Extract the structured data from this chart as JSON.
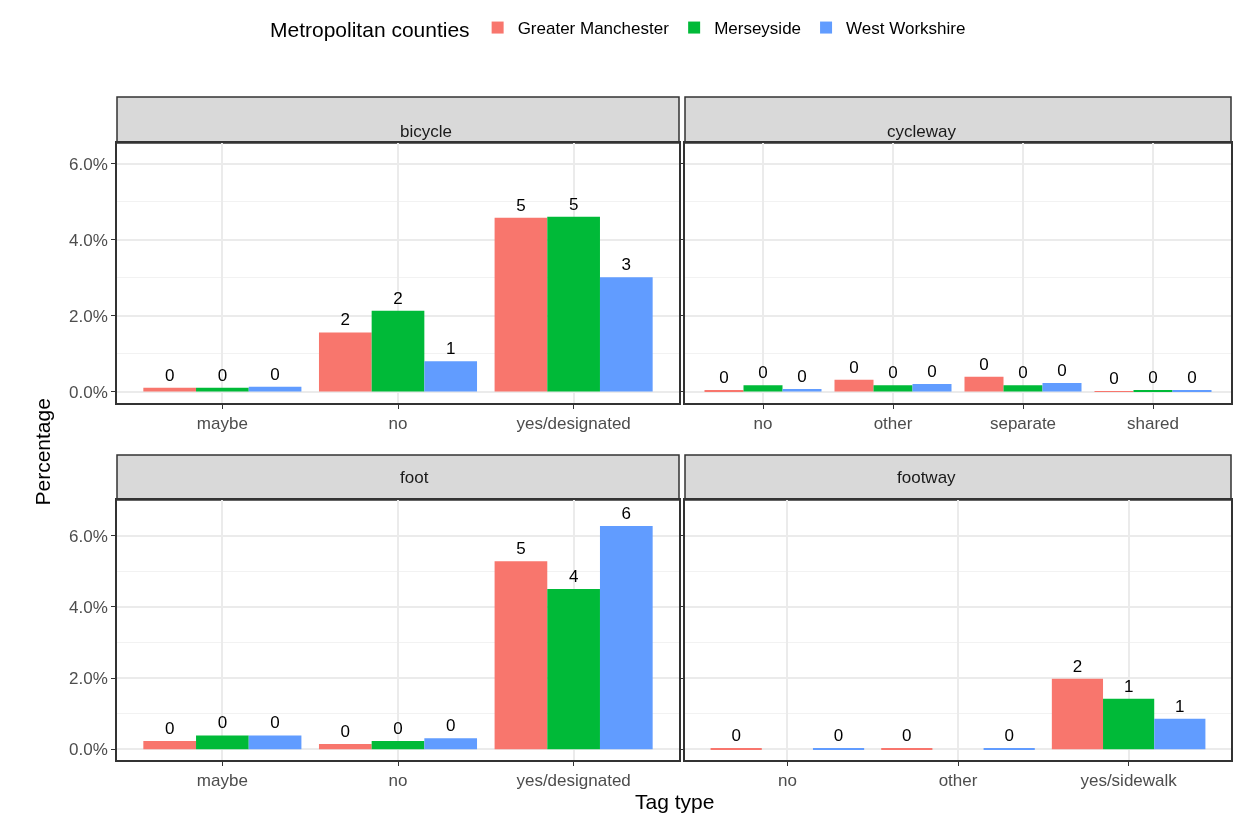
{
  "chart_data": [
    {
      "type": "bar",
      "title": "bicycle",
      "legend_title": "Metropolitan counties",
      "legend": "top",
      "ylabel": "Percentage",
      "grid": true,
      "categories": [
        "maybe",
        "no",
        "yes/designated"
      ],
      "series": [
        {
          "name": "Greater Manchester",
          "color": "#f8766d",
          "values": [
            0.1,
            1.56,
            4.58
          ],
          "value_labels": [
            "0",
            "2",
            "5"
          ]
        },
        {
          "name": "Merseyside",
          "color": "#00ba38",
          "values": [
            0.1,
            2.13,
            4.61
          ],
          "value_labels": [
            "0",
            "2",
            "5"
          ]
        },
        {
          "name": "West Workshire",
          "color": "#619cff",
          "values": [
            0.13,
            0.8,
            3.01
          ],
          "value_labels": [
            "0",
            "1",
            "3"
          ]
        }
      ],
      "ylim": [
        -0.3,
        6.55
      ],
      "yticks": [
        {
          "value": 0,
          "label": "0.0%"
        },
        {
          "value": 2,
          "label": "2.0%"
        },
        {
          "value": 4,
          "label": "4.0%"
        },
        {
          "value": 6,
          "label": "6.0%"
        }
      ]
    },
    {
      "type": "bar",
      "title": "cycleway",
      "grid": true,
      "tick_labels": "x",
      "categories": [
        "no",
        "other",
        "separate",
        "shared"
      ],
      "series": [
        {
          "name": "Greater Manchester",
          "color": "#f8766d",
          "values": [
            0.04,
            0.31,
            0.39,
            0.01
          ],
          "value_labels": [
            "0",
            "0",
            "0",
            "0"
          ]
        },
        {
          "name": "Merseyside",
          "color": "#00ba38",
          "values": [
            0.17,
            0.17,
            0.17,
            0.03
          ],
          "value_labels": [
            "0",
            "0",
            "0",
            "0"
          ]
        },
        {
          "name": "West Workshire",
          "color": "#619cff",
          "values": [
            0.07,
            0.2,
            0.23,
            0.03
          ],
          "value_labels": [
            "0",
            "0",
            "0",
            "0"
          ]
        }
      ],
      "ylim": [
        -0.3,
        6.55
      ],
      "yticks": [
        {
          "value": 0,
          "label": "0.0%"
        },
        {
          "value": 2,
          "label": "2.0%"
        },
        {
          "value": 4,
          "label": "4.0%"
        },
        {
          "value": 6,
          "label": "6.0%"
        }
      ]
    },
    {
      "type": "bar",
      "title": "foot",
      "grid": true,
      "xlabel": "Tag type",
      "categories": [
        "maybe",
        "no",
        "yes/designated"
      ],
      "series": [
        {
          "name": "Greater Manchester",
          "color": "#f8766d",
          "values": [
            0.23,
            0.15,
            5.28
          ],
          "value_labels": [
            "0",
            "0",
            "5"
          ]
        },
        {
          "name": "Merseyside",
          "color": "#00ba38",
          "values": [
            0.39,
            0.23,
            4.5
          ],
          "value_labels": [
            "0",
            "0",
            "4"
          ]
        },
        {
          "name": "West Workshire",
          "color": "#619cff",
          "values": [
            0.39,
            0.31,
            6.27
          ],
          "value_labels": [
            "0",
            "0",
            "6"
          ]
        }
      ],
      "ylim": [
        -0.3,
        7.0
      ],
      "yticks": [
        {
          "value": 0,
          "label": "0.0%"
        },
        {
          "value": 2,
          "label": "2.0%"
        },
        {
          "value": 4,
          "label": "4.0%"
        },
        {
          "value": 6,
          "label": "6.0%"
        }
      ]
    },
    {
      "type": "bar",
      "title": "footway",
      "grid": true,
      "tick_labels": "x",
      "categories": [
        "no",
        "other",
        "yes/sidewalk"
      ],
      "series": [
        {
          "name": "Greater Manchester",
          "color": "#f8766d",
          "values": [
            0.01,
            0.03,
            1.98
          ],
          "value_labels": [
            "0",
            "0",
            "2"
          ]
        },
        {
          "name": "Merseyside",
          "color": "#00ba38",
          "values": [
            null,
            null,
            1.42
          ],
          "value_labels": [
            null,
            null,
            "1"
          ]
        },
        {
          "name": "West Workshire",
          "color": "#619cff",
          "values": [
            0.01,
            0.03,
            0.86
          ],
          "value_labels": [
            "0",
            "0",
            "1"
          ]
        }
      ],
      "ylim": [
        -0.3,
        7.0
      ],
      "yticks": [
        {
          "value": 0,
          "label": "0.0%"
        },
        {
          "value": 2,
          "label": "2.0%"
        },
        {
          "value": 4,
          "label": "4.0%"
        },
        {
          "value": 6,
          "label": "6.0%"
        }
      ]
    }
  ]
}
